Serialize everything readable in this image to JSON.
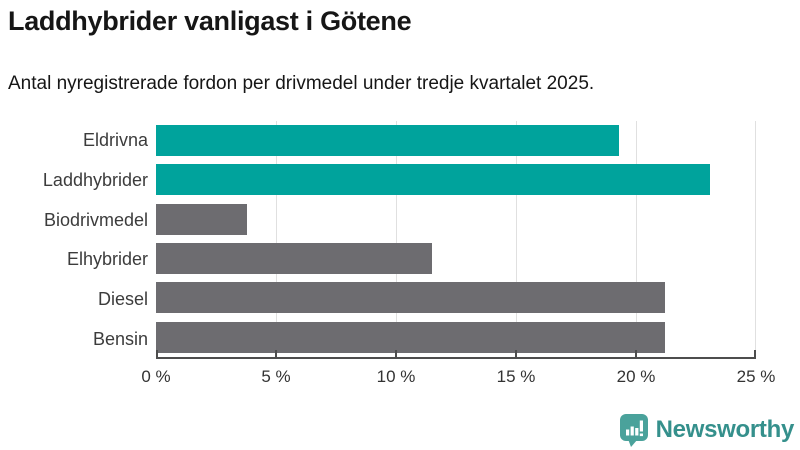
{
  "header": {
    "title": "Laddhybrider vanligast i Götene",
    "subtitle": "Antal nyregistrerade fordon per drivmedel under tredje kvartalet 2025."
  },
  "chart_data": {
    "type": "bar",
    "orientation": "horizontal",
    "categories": [
      "Eldrivna",
      "Laddhybrider",
      "Biodrivmedel",
      "Elhybrider",
      "Diesel",
      "Bensin"
    ],
    "values": [
      19.3,
      23.1,
      3.8,
      11.5,
      21.2,
      21.2
    ],
    "value_unit": "%",
    "xlim": [
      0,
      25
    ],
    "xticks": [
      0,
      5,
      10,
      15,
      20,
      25
    ],
    "xtick_labels": [
      "0 %",
      "5 %",
      "10 %",
      "15 %",
      "20 %",
      "25 %"
    ],
    "grid": true,
    "legend_position": "none",
    "colors": {
      "highlight": "#00a39c",
      "base": "#6d6c70"
    },
    "highlighted_categories": [
      "Eldrivna",
      "Laddhybrider"
    ]
  },
  "footer": {
    "brand_label": "Newsworthy",
    "logo_icon_color": "#4aa29b",
    "brand_text_color": "#35908c"
  }
}
